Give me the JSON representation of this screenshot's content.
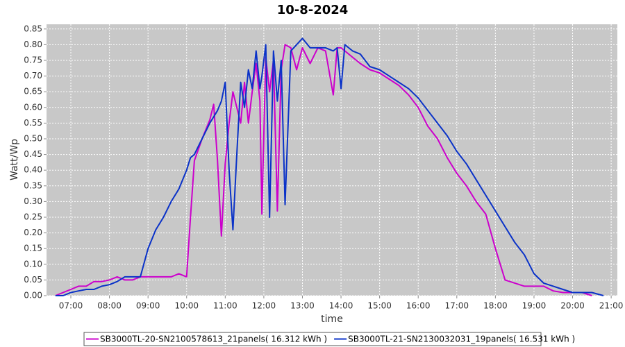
{
  "chart_data": {
    "type": "line",
    "title": "10-8-2024",
    "x_label": "time",
    "y_label": "Watt/Wp",
    "xlim": [
      6.37,
      21.16
    ],
    "ylim": [
      0,
      0.865
    ],
    "xticks": [
      {
        "value": 7,
        "label": "07:00"
      },
      {
        "value": 8,
        "label": "08:00"
      },
      {
        "value": 9,
        "label": "09:00"
      },
      {
        "value": 10,
        "label": "10:00"
      },
      {
        "value": 11,
        "label": "11:00"
      },
      {
        "value": 12,
        "label": "12:00"
      },
      {
        "value": 13,
        "label": "13:00"
      },
      {
        "value": 14,
        "label": "14:00"
      },
      {
        "value": 15,
        "label": "15:00"
      },
      {
        "value": 16,
        "label": "16:00"
      },
      {
        "value": 17,
        "label": "17:00"
      },
      {
        "value": 18,
        "label": "18:00"
      },
      {
        "value": 19,
        "label": "19:00"
      },
      {
        "value": 20,
        "label": "20:00"
      },
      {
        "value": 21,
        "label": "21:00"
      }
    ],
    "yticks": [
      {
        "value": 0,
        "label": "0.00"
      },
      0.05,
      {
        "value": 0.1,
        "label": "0.10"
      },
      0.15,
      {
        "value": 0.2,
        "label": "0.20"
      },
      0.25,
      {
        "value": 0.3,
        "label": "0.30"
      },
      0.35,
      {
        "value": 0.4,
        "label": "0.40"
      },
      0.45,
      {
        "value": 0.5,
        "label": "0.50"
      },
      0.55,
      {
        "value": 0.6,
        "label": "0.60"
      },
      0.65,
      {
        "value": 0.7,
        "label": "0.70"
      },
      0.75,
      {
        "value": 0.8,
        "label": "0.80"
      },
      0.85
    ],
    "grid": true,
    "x": [
      6.6,
      6.8,
      7.0,
      7.2,
      7.4,
      7.6,
      7.8,
      8.0,
      8.2,
      8.4,
      8.6,
      8.8,
      9.0,
      9.2,
      9.4,
      9.6,
      9.8,
      10.0,
      10.1,
      10.2,
      10.4,
      10.6,
      10.7,
      10.8,
      10.9,
      11.0,
      11.1,
      11.2,
      11.3,
      11.4,
      11.5,
      11.6,
      11.7,
      11.8,
      11.9,
      11.95,
      12.05,
      12.15,
      12.25,
      12.35,
      12.45,
      12.55,
      12.7,
      12.85,
      13.0,
      13.2,
      13.4,
      13.6,
      13.8,
      13.9,
      14.0,
      14.1,
      14.3,
      14.5,
      14.75,
      15.0,
      15.25,
      15.5,
      15.75,
      16.0,
      16.25,
      16.5,
      16.75,
      17.0,
      17.25,
      17.5,
      17.75,
      18.0,
      18.25,
      18.5,
      18.75,
      19.0,
      19.25,
      19.5,
      19.75,
      20.0,
      20.25,
      20.5,
      20.8
    ],
    "series": [
      {
        "name": "SB3000TL-20-SN2100578613_21panels( 16.312 kWh )",
        "color": "#cc00cc",
        "values": [
          0,
          0.01,
          0.02,
          0.03,
          0.03,
          0.045,
          0.045,
          0.05,
          0.06,
          0.05,
          0.05,
          0.06,
          0.06,
          0.06,
          0.06,
          0.06,
          0.07,
          0.06,
          0.25,
          0.43,
          0.5,
          0.56,
          0.61,
          0.43,
          0.19,
          0.42,
          0.55,
          0.65,
          0.6,
          0.55,
          0.68,
          0.55,
          0.65,
          0.74,
          0.62,
          0.26,
          0.76,
          0.65,
          0.75,
          0.27,
          0.72,
          0.8,
          0.79,
          0.72,
          0.79,
          0.74,
          0.79,
          0.78,
          0.64,
          0.79,
          0.79,
          0.78,
          0.76,
          0.74,
          0.72,
          0.71,
          0.69,
          0.67,
          0.64,
          0.6,
          0.54,
          0.5,
          0.44,
          0.39,
          0.35,
          0.3,
          0.26,
          0.15,
          0.05,
          0.04,
          0.03,
          0.03,
          0.03,
          0.015,
          0.01,
          0.01,
          0.01,
          0,
          null
        ]
      },
      {
        "name": "SB3000TL-21-SN2130032031_19panels( 16.531 kWh )",
        "color": "#0a32c8",
        "values": [
          0,
          0,
          0.01,
          0.015,
          0.02,
          0.02,
          0.03,
          0.035,
          0.045,
          0.06,
          0.06,
          0.06,
          0.15,
          0.21,
          0.25,
          0.3,
          0.34,
          0.4,
          0.44,
          0.45,
          0.5,
          0.55,
          0.57,
          0.59,
          0.62,
          0.68,
          0.4,
          0.21,
          0.45,
          0.68,
          0.6,
          0.72,
          0.66,
          0.78,
          0.66,
          0.7,
          0.8,
          0.25,
          0.78,
          0.62,
          0.75,
          0.29,
          0.78,
          0.8,
          0.82,
          0.79,
          0.79,
          0.79,
          0.78,
          0.79,
          0.66,
          0.8,
          0.78,
          0.77,
          0.73,
          0.72,
          0.7,
          0.68,
          0.66,
          0.63,
          0.59,
          0.55,
          0.51,
          0.46,
          0.42,
          0.37,
          0.32,
          0.27,
          0.22,
          0.17,
          0.13,
          0.07,
          0.04,
          0.03,
          0.02,
          0.01,
          0.01,
          0.01,
          0
        ]
      }
    ]
  }
}
